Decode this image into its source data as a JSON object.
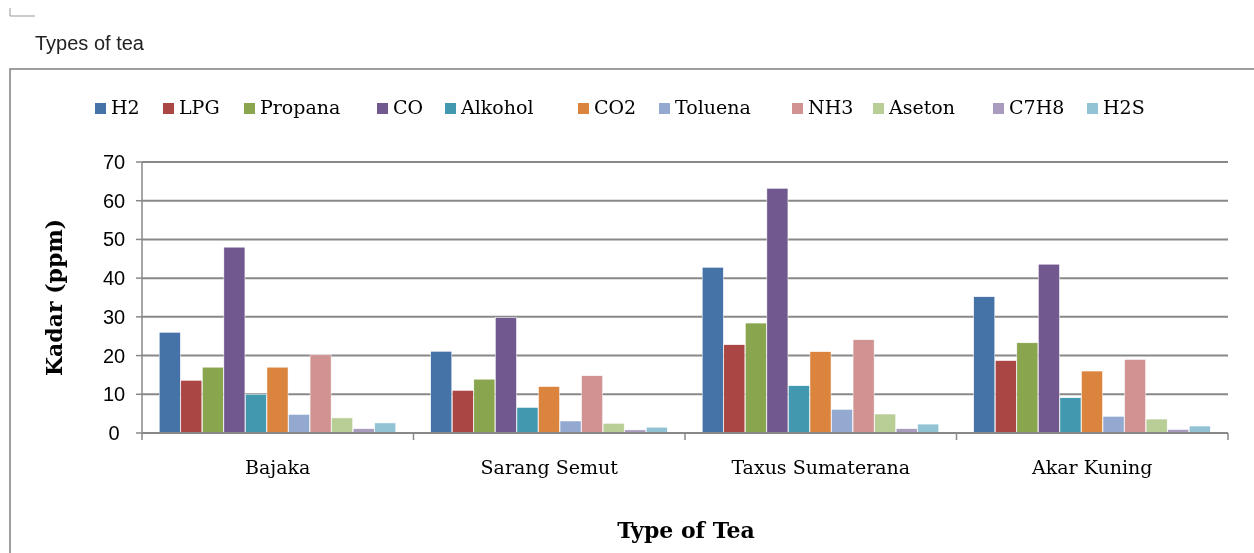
{
  "chart_data": {
    "type": "bar",
    "title": "Types of tea",
    "xlabel": "Type of Tea",
    "ylabel": "Kadar (ppm)",
    "categories": [
      "Bajaka",
      "Sarang Semut",
      "Taxus Sumaterana",
      "Akar Kuning"
    ],
    "series": [
      {
        "name": "H2",
        "color": "#4572a7",
        "values": [
          26.0,
          21.1,
          42.8,
          35.2
        ]
      },
      {
        "name": "LPG",
        "color": "#aa4643",
        "values": [
          13.6,
          11.0,
          22.8,
          18.7
        ]
      },
      {
        "name": "Propana",
        "color": "#89a54e",
        "values": [
          17.0,
          13.9,
          28.4,
          23.3
        ]
      },
      {
        "name": "CO",
        "color": "#71588f",
        "values": [
          48.0,
          29.8,
          63.2,
          43.6
        ]
      },
      {
        "name": "Alkohol",
        "color": "#4198af",
        "values": [
          10.0,
          6.6,
          12.2,
          9.1
        ]
      },
      {
        "name": "CO2",
        "color": "#db843d",
        "values": [
          17.0,
          12.0,
          21.0,
          16.0
        ]
      },
      {
        "name": "Toluena",
        "color": "#93a9cf",
        "values": [
          4.8,
          3.1,
          6.1,
          4.3
        ]
      },
      {
        "name": "NH3",
        "color": "#d19392",
        "values": [
          20.2,
          14.8,
          24.1,
          19.0
        ]
      },
      {
        "name": "Aseton",
        "color": "#b9cd96",
        "values": [
          3.9,
          2.5,
          4.9,
          3.6
        ]
      },
      {
        "name": "C7H8",
        "color": "#a99bbd",
        "values": [
          1.1,
          0.8,
          1.1,
          0.9
        ]
      },
      {
        "name": "H2S",
        "color": "#91c3d5",
        "values": [
          2.6,
          1.5,
          2.3,
          1.8
        ]
      }
    ],
    "ylim": [
      0,
      70
    ],
    "yticks": [
      0,
      10,
      20,
      30,
      40,
      50,
      60,
      70
    ],
    "grid": "y",
    "legend": "top"
  }
}
